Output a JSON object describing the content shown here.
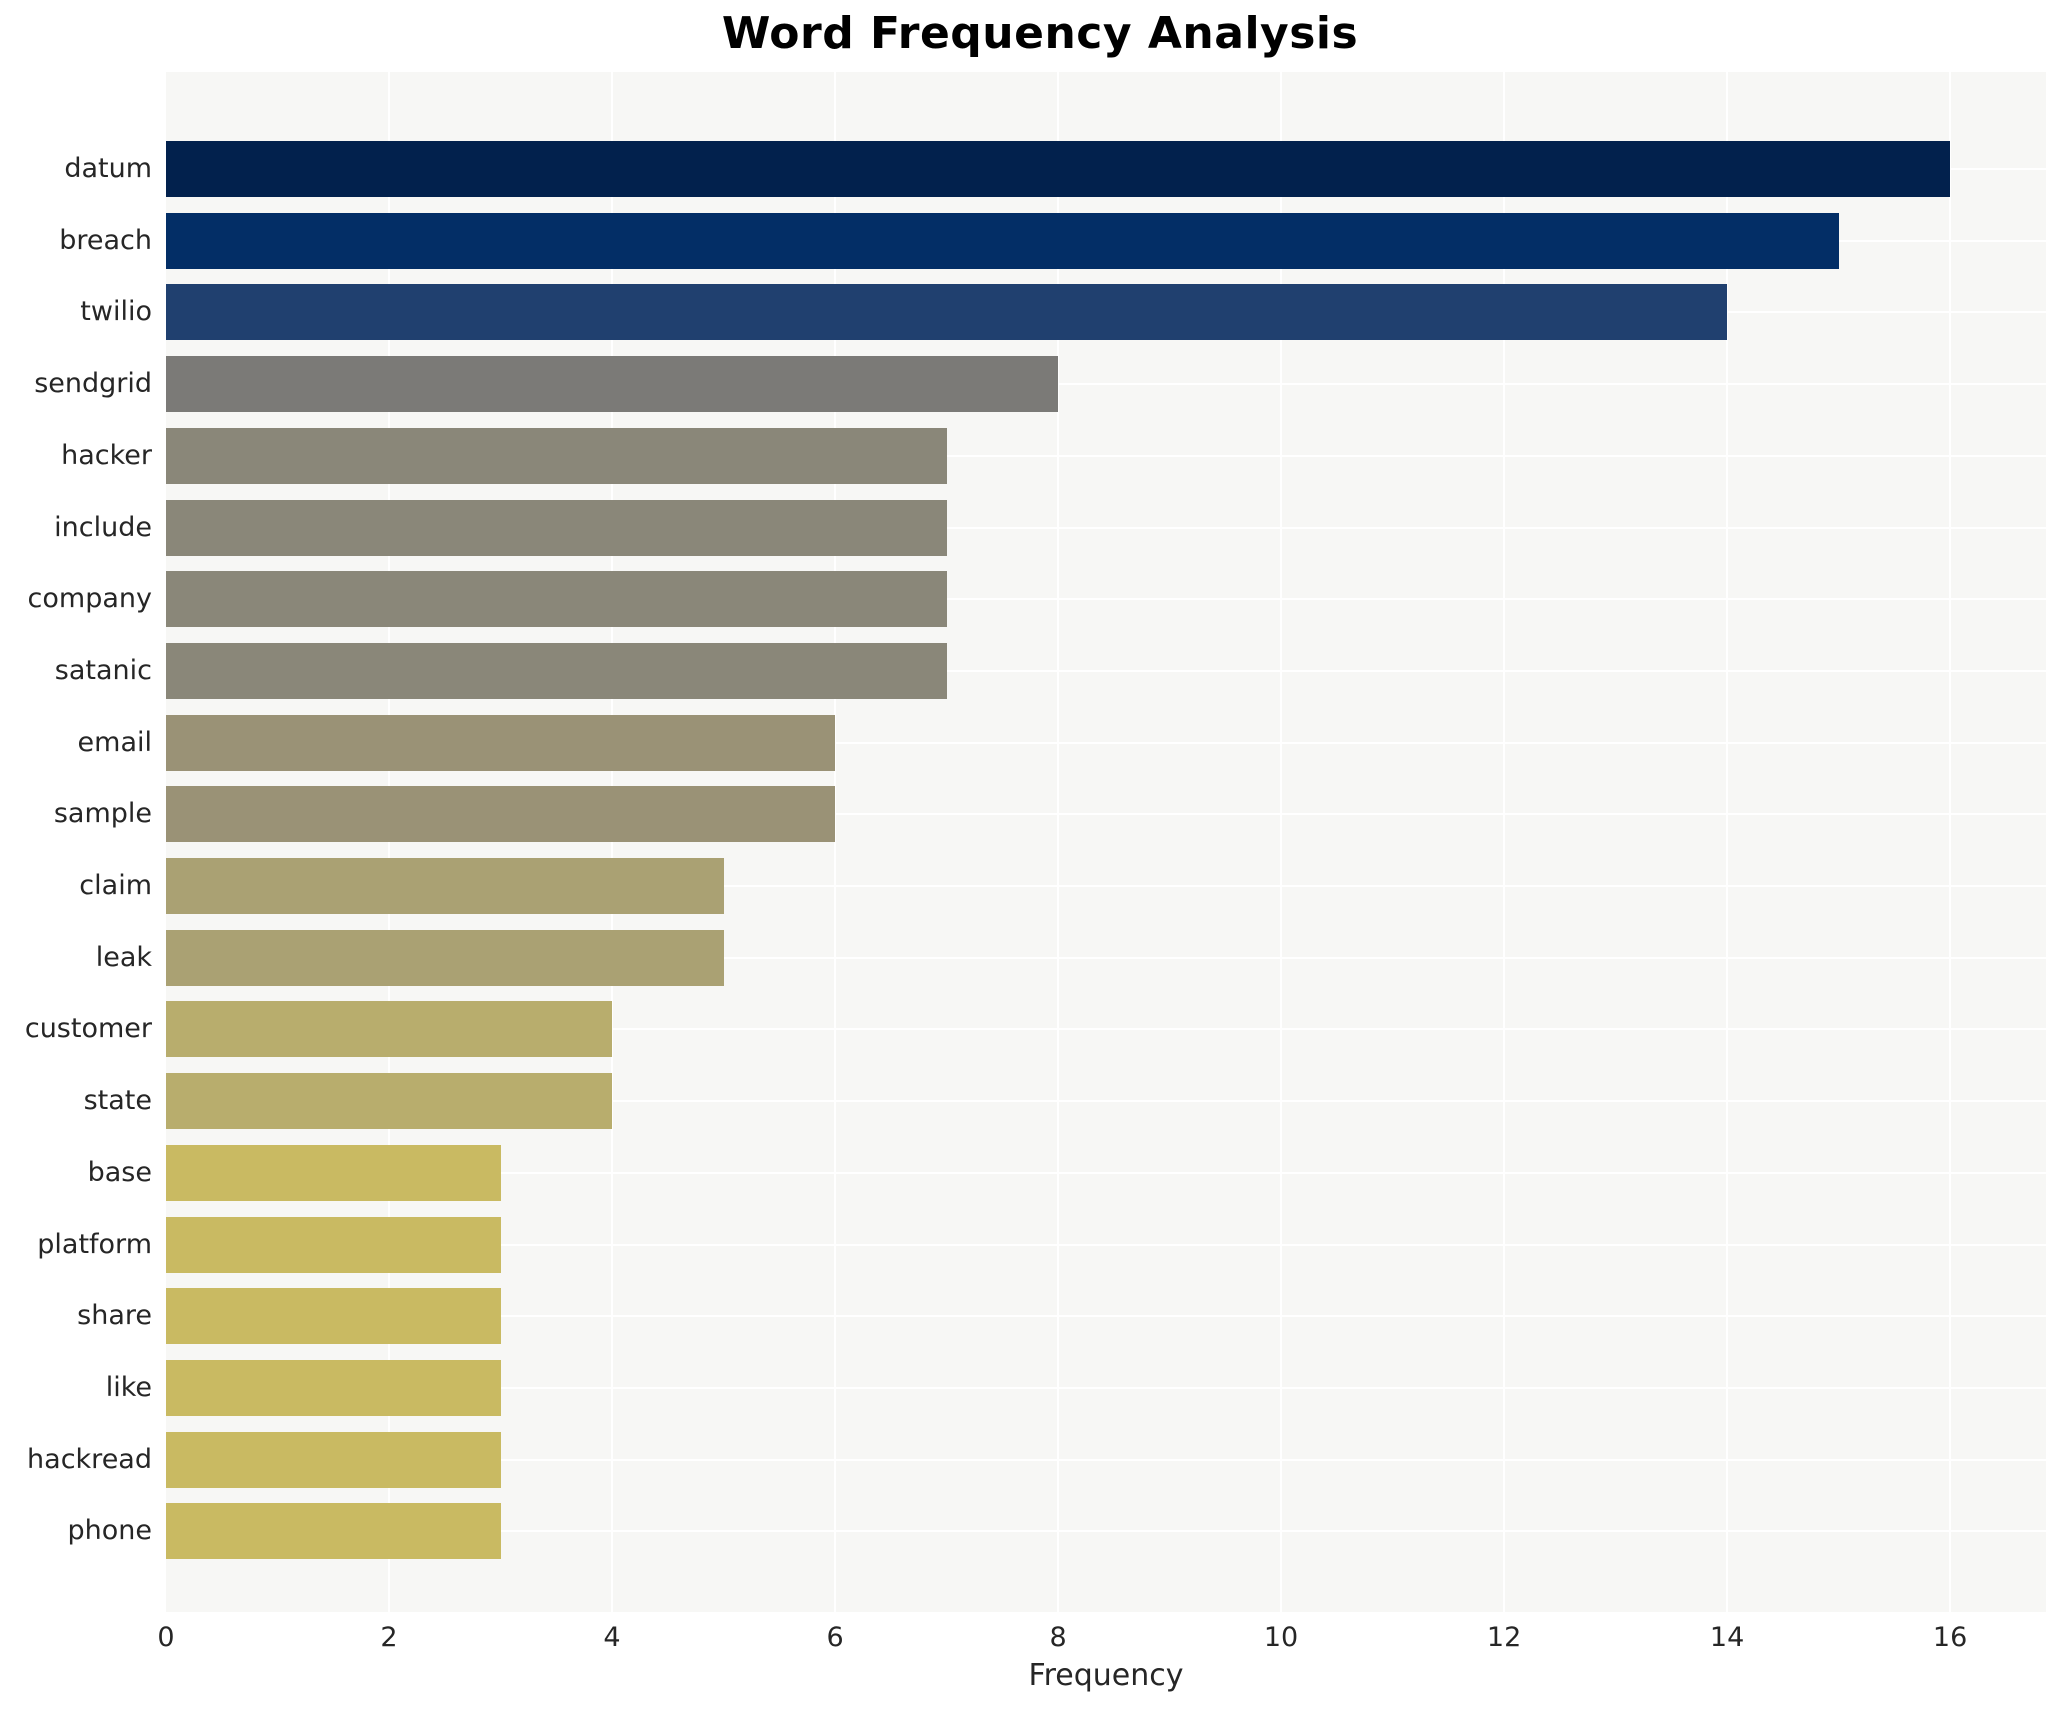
{
  "chart_data": {
    "type": "bar",
    "orientation": "horizontal",
    "title": "Word Frequency Analysis",
    "xlabel": "Frequency",
    "ylabel": "",
    "categories": [
      "datum",
      "breach",
      "twilio",
      "sendgrid",
      "hacker",
      "include",
      "company",
      "satanic",
      "email",
      "sample",
      "claim",
      "leak",
      "customer",
      "state",
      "base",
      "platform",
      "share",
      "like",
      "hackread",
      "phone"
    ],
    "values": [
      16,
      15,
      14,
      8,
      7,
      7,
      7,
      7,
      6,
      6,
      5,
      5,
      4,
      4,
      3,
      3,
      3,
      3,
      3,
      3
    ],
    "bar_colors": [
      "#02214d",
      "#032e66",
      "#20406f",
      "#7b7a77",
      "#8a8779",
      "#8a8779",
      "#8a8779",
      "#8a8779",
      "#9a9276",
      "#9a9276",
      "#aaa173",
      "#aaa173",
      "#b8ad6d",
      "#b8ad6d",
      "#c9ba62",
      "#c9ba62",
      "#c9ba62",
      "#c9ba62",
      "#c9ba62",
      "#c9ba62"
    ],
    "xlim": [
      0,
      16.86
    ],
    "xticks": [
      0,
      2,
      4,
      6,
      8,
      10,
      12,
      14,
      16
    ],
    "grid": true,
    "legend": "none",
    "plot_background": "#f7f7f5",
    "grid_color": "#ffffff",
    "text_color": "#262626"
  }
}
